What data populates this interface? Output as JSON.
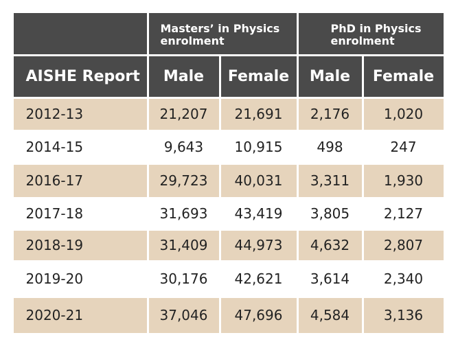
{
  "table": {
    "corner": "AISHE Report",
    "groups": [
      {
        "label": "Masters’ in Physics enrolment",
        "columns": [
          "Male",
          "Female"
        ]
      },
      {
        "label": "PhD in Physics enrolment",
        "columns": [
          "Male",
          "Female"
        ]
      }
    ],
    "rows": [
      [
        "2012-13",
        "21,207",
        "21,691",
        "2,176",
        "1,020"
      ],
      [
        "2014-15",
        "9,643",
        "10,915",
        "498",
        "247"
      ],
      [
        "2016-17",
        "29,723",
        "40,031",
        "3,311",
        "1,930"
      ],
      [
        "2017-18",
        "31,693",
        "43,419",
        "3,805",
        "2,127"
      ],
      [
        "2018-19",
        "31,409",
        "44,973",
        "4,632",
        "2,807"
      ],
      [
        "2019-20",
        "30,176",
        "42,621",
        "3,614",
        "2,340"
      ],
      [
        "2020-21",
        "37,046",
        "47,696",
        "4,584",
        "3,136"
      ]
    ]
  }
}
